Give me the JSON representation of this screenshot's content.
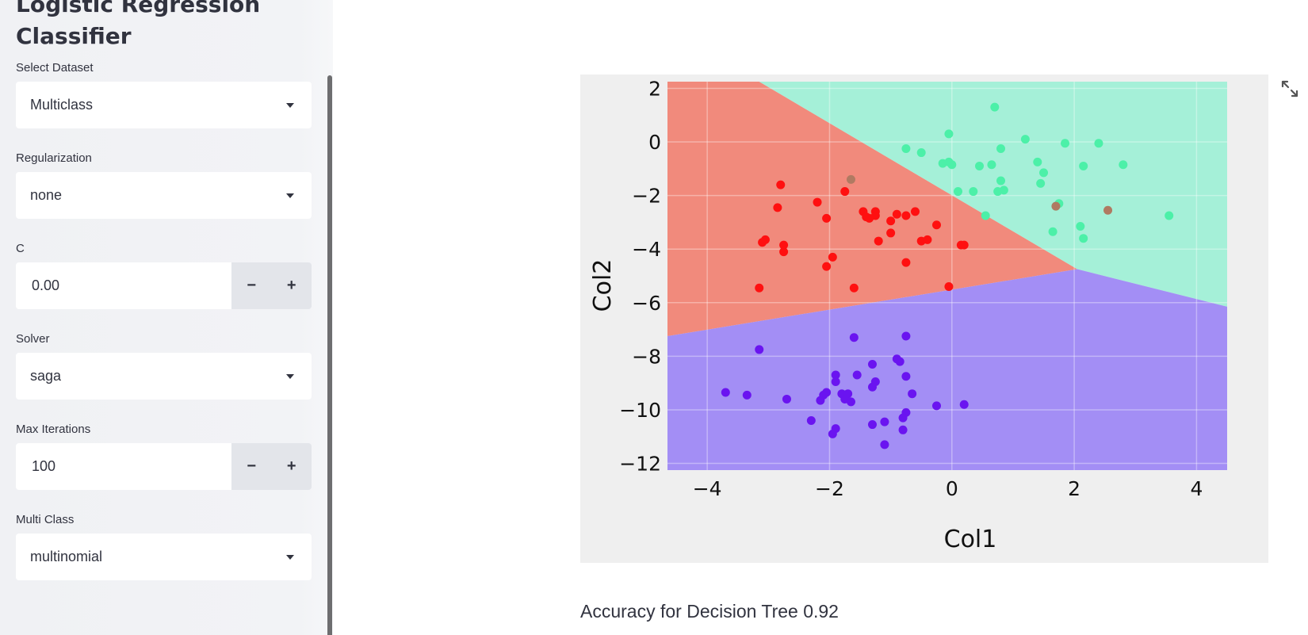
{
  "sidebar": {
    "title": "Logistic Regression Classifier",
    "dataset": {
      "label": "Select Dataset",
      "value": "Multiclass"
    },
    "regularization": {
      "label": "Regularization",
      "value": "none"
    },
    "c": {
      "label": "C",
      "value": "0.00",
      "minus": "−",
      "plus": "+"
    },
    "solver": {
      "label": "Solver",
      "value": "saga"
    },
    "max_iter": {
      "label": "Max Iterations",
      "value": "100",
      "minus": "−",
      "plus": "+"
    },
    "multi_class": {
      "label": "Multi Class",
      "value": "multinomial"
    }
  },
  "main": {
    "accuracy_text": "Accuracy for Decision Tree 0.92",
    "expand_icon": "expand-icon"
  },
  "chart_data": {
    "type": "scatter",
    "title": "",
    "xlabel": "Col1",
    "ylabel": "Col2",
    "xlim": [
      -4.65,
      4.5
    ],
    "ylim": [
      -12.25,
      2.25
    ],
    "x_ticks": [
      -4,
      -2,
      0,
      2,
      4
    ],
    "y_ticks": [
      2,
      0,
      -2,
      -4,
      -6,
      -8,
      -10,
      -12
    ],
    "x_tick_labels": [
      "−4",
      "−2",
      "0",
      "2",
      "4"
    ],
    "y_tick_labels": [
      "2",
      "0",
      "−2",
      "−4",
      "−6",
      "−8",
      "−10",
      "−12"
    ],
    "grid": true,
    "decision_regions": [
      {
        "class": "red",
        "color": "#f18a7c",
        "polygon": [
          [
            -4.65,
            2.25
          ],
          [
            -3.15,
            2.25
          ],
          [
            2.05,
            -4.75
          ],
          [
            -4.65,
            -7.25
          ]
        ]
      },
      {
        "class": "green",
        "color": "#a5f0d8",
        "polygon": [
          [
            -3.15,
            2.25
          ],
          [
            4.5,
            2.25
          ],
          [
            4.5,
            -6.15
          ],
          [
            2.05,
            -4.75
          ]
        ]
      },
      {
        "class": "purple",
        "color": "#a38ef5",
        "polygon": [
          [
            -4.65,
            -7.25
          ],
          [
            2.05,
            -4.75
          ],
          [
            4.5,
            -6.15
          ],
          [
            4.5,
            -12.25
          ],
          [
            -4.65,
            -12.25
          ]
        ]
      }
    ],
    "series": [
      {
        "color": "#ff1010",
        "points": [
          [
            -2.8,
            -1.6
          ],
          [
            -2.85,
            -2.45
          ],
          [
            -3.05,
            -3.65
          ],
          [
            -3.1,
            -3.75
          ],
          [
            -2.75,
            -3.85
          ],
          [
            -2.75,
            -4.1
          ],
          [
            -3.15,
            -5.45
          ],
          [
            -2.2,
            -2.25
          ],
          [
            -2.05,
            -2.85
          ],
          [
            -1.75,
            -1.85
          ],
          [
            -1.45,
            -2.6
          ],
          [
            -1.4,
            -2.8
          ],
          [
            -1.35,
            -2.85
          ],
          [
            -1.25,
            -2.6
          ],
          [
            -1.25,
            -2.75
          ],
          [
            -1.2,
            -3.7
          ],
          [
            -1.0,
            -3.4
          ],
          [
            -1.0,
            -2.95
          ],
          [
            -0.9,
            -2.7
          ],
          [
            -0.75,
            -2.75
          ],
          [
            -0.6,
            -2.6
          ],
          [
            -0.5,
            -3.7
          ],
          [
            -0.4,
            -3.65
          ],
          [
            -0.25,
            -3.1
          ],
          [
            -1.95,
            -4.3
          ],
          [
            -2.05,
            -4.65
          ],
          [
            -1.6,
            -5.45
          ],
          [
            -0.75,
            -4.5
          ],
          [
            0.15,
            -3.85
          ],
          [
            0.2,
            -3.85
          ],
          [
            -0.05,
            -5.4
          ]
        ]
      },
      {
        "color": "#4cf0a8",
        "points": [
          [
            0.7,
            1.3
          ],
          [
            -0.75,
            -0.25
          ],
          [
            -0.5,
            -0.4
          ],
          [
            -0.05,
            0.3
          ],
          [
            -0.15,
            -0.8
          ],
          [
            -0.05,
            -0.75
          ],
          [
            0.0,
            -0.85
          ],
          [
            0.1,
            -1.85
          ],
          [
            0.35,
            -1.85
          ],
          [
            0.45,
            -0.9
          ],
          [
            0.65,
            -0.85
          ],
          [
            0.55,
            -2.75
          ],
          [
            0.75,
            -1.85
          ],
          [
            0.8,
            -1.45
          ],
          [
            0.85,
            -1.8
          ],
          [
            0.8,
            -0.25
          ],
          [
            1.2,
            0.1
          ],
          [
            1.4,
            -0.75
          ],
          [
            1.5,
            -1.15
          ],
          [
            1.45,
            -1.55
          ],
          [
            1.75,
            -2.3
          ],
          [
            1.7,
            -2.4
          ],
          [
            1.65,
            -3.35
          ],
          [
            1.85,
            -0.05
          ],
          [
            2.1,
            -3.15
          ],
          [
            2.15,
            -3.6
          ],
          [
            2.15,
            -0.9
          ],
          [
            2.4,
            -0.05
          ],
          [
            2.8,
            -0.85
          ],
          [
            3.55,
            -2.75
          ]
        ]
      },
      {
        "color": "#6a14f0",
        "points": [
          [
            -0.75,
            -7.25
          ],
          [
            -1.6,
            -7.3
          ],
          [
            -3.15,
            -7.75
          ],
          [
            -0.9,
            -8.1
          ],
          [
            -0.85,
            -8.2
          ],
          [
            -1.3,
            -8.3
          ],
          [
            -0.75,
            -8.75
          ],
          [
            -1.55,
            -8.7
          ],
          [
            -1.25,
            -8.95
          ],
          [
            -1.3,
            -9.15
          ],
          [
            -1.9,
            -8.7
          ],
          [
            -1.9,
            -8.95
          ],
          [
            -2.05,
            -9.35
          ],
          [
            -2.1,
            -9.45
          ],
          [
            -1.8,
            -9.4
          ],
          [
            -1.7,
            -9.4
          ],
          [
            -1.75,
            -9.6
          ],
          [
            -1.65,
            -9.7
          ],
          [
            -2.15,
            -9.65
          ],
          [
            -2.7,
            -9.6
          ],
          [
            -3.35,
            -9.45
          ],
          [
            -3.7,
            -9.35
          ],
          [
            -0.65,
            -9.4
          ],
          [
            -0.25,
            -9.85
          ],
          [
            0.2,
            -9.8
          ],
          [
            -0.75,
            -10.1
          ],
          [
            -0.8,
            -10.3
          ],
          [
            -2.3,
            -10.4
          ],
          [
            -1.9,
            -10.7
          ],
          [
            -1.95,
            -10.9
          ],
          [
            -1.3,
            -10.55
          ],
          [
            -1.1,
            -10.45
          ],
          [
            -0.8,
            -10.75
          ],
          [
            -1.1,
            -11.3
          ]
        ]
      },
      {
        "color": "#b07a62",
        "points": [
          [
            -1.65,
            -1.4
          ],
          [
            1.7,
            -2.4
          ],
          [
            2.55,
            -2.55
          ]
        ]
      }
    ]
  }
}
